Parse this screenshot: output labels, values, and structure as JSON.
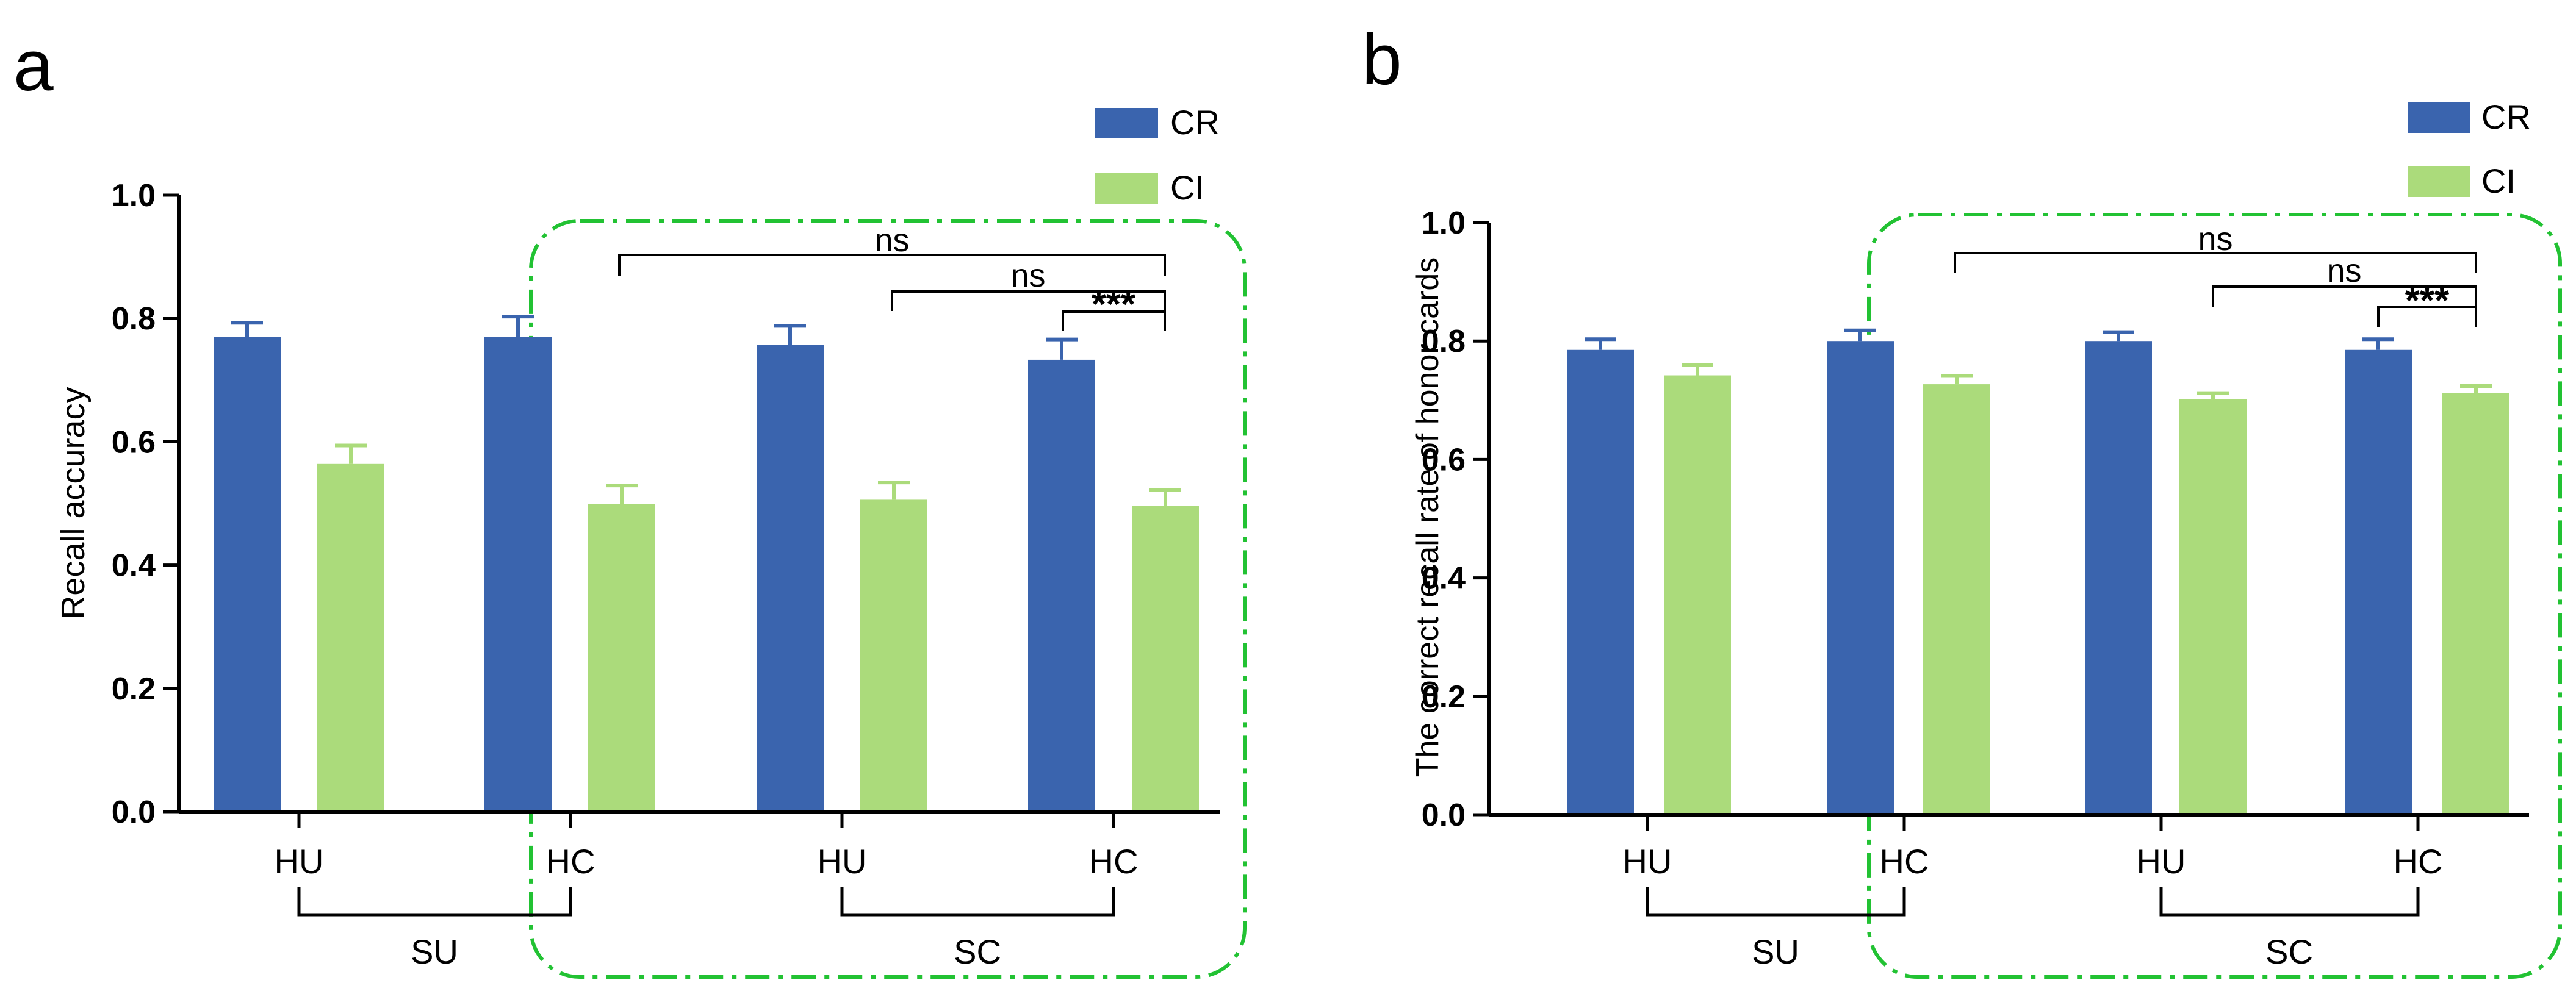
{
  "colors": {
    "cr": "#3a64ae",
    "ci": "#abdb7b",
    "frame": "#22c233",
    "ink": "#000000"
  },
  "chart_data": [
    {
      "type": "bar",
      "panel_label": "a",
      "ylabel": "Recall accuracy",
      "ylim": [
        0,
        1.0
      ],
      "yticks": [
        "0.0",
        "0.2",
        "0.4",
        "0.6",
        "0.8",
        "1.0"
      ],
      "categories": [
        "HU",
        "HC",
        "HU",
        "HC"
      ],
      "groups": [
        "SU",
        "SC"
      ],
      "series": [
        {
          "name": "CR",
          "values": [
            0.77,
            0.77,
            0.757,
            0.733
          ],
          "errors": [
            0.023,
            0.033,
            0.031,
            0.033
          ]
        },
        {
          "name": "CI",
          "values": [
            0.564,
            0.499,
            0.506,
            0.496
          ],
          "errors": [
            0.03,
            0.03,
            0.028,
            0.026
          ]
        }
      ],
      "annotations": [
        "ns",
        "ns",
        "***"
      ]
    },
    {
      "type": "bar",
      "panel_label": "b",
      "ylabel": "The correct recall rate of honor cards",
      "ylim": [
        0,
        1.0
      ],
      "yticks": [
        "0.0",
        "0.2",
        "0.4",
        "0.6",
        "0.8",
        "1.0"
      ],
      "categories": [
        "HU",
        "HC",
        "HU",
        "HC"
      ],
      "groups": [
        "SU",
        "SC"
      ],
      "series": [
        {
          "name": "CR",
          "values": [
            0.785,
            0.8,
            0.8,
            0.785
          ],
          "errors": [
            0.018,
            0.018,
            0.015,
            0.018
          ]
        },
        {
          "name": "CI",
          "values": [
            0.742,
            0.727,
            0.702,
            0.712
          ],
          "errors": [
            0.018,
            0.014,
            0.01,
            0.012
          ]
        }
      ],
      "annotations": [
        "ns",
        "ns",
        "***"
      ]
    }
  ]
}
